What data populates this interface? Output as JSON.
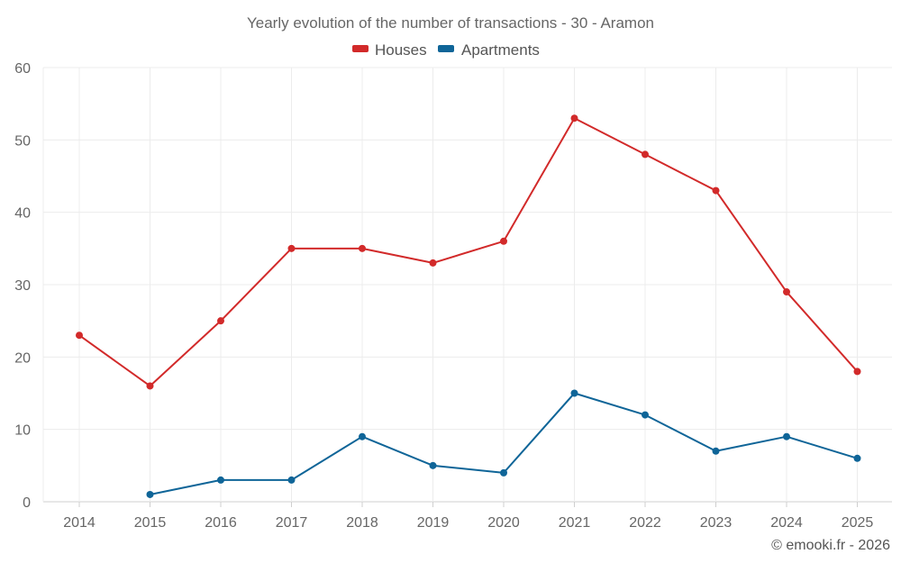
{
  "chart_data": {
    "type": "line",
    "title": "Yearly evolution of the number of transactions - 30 - Aramon",
    "categories": [
      "2014",
      "2015",
      "2016",
      "2017",
      "2018",
      "2019",
      "2020",
      "2021",
      "2022",
      "2023",
      "2024",
      "2025"
    ],
    "series": [
      {
        "name": "Houses",
        "color": "#d22a2a",
        "values": [
          23,
          16,
          25,
          35,
          35,
          33,
          36,
          53,
          48,
          43,
          29,
          18
        ]
      },
      {
        "name": "Apartments",
        "color": "#0f6598",
        "values": [
          null,
          1,
          3,
          3,
          9,
          5,
          4,
          15,
          12,
          7,
          9,
          6
        ]
      }
    ],
    "ylim": [
      0,
      60
    ],
    "yticks": [
      0,
      10,
      20,
      30,
      40,
      50,
      60
    ],
    "xlabel": "",
    "ylabel": "",
    "grid": true,
    "legend": "top-center"
  },
  "credit": "© emooki.fr - 2026"
}
